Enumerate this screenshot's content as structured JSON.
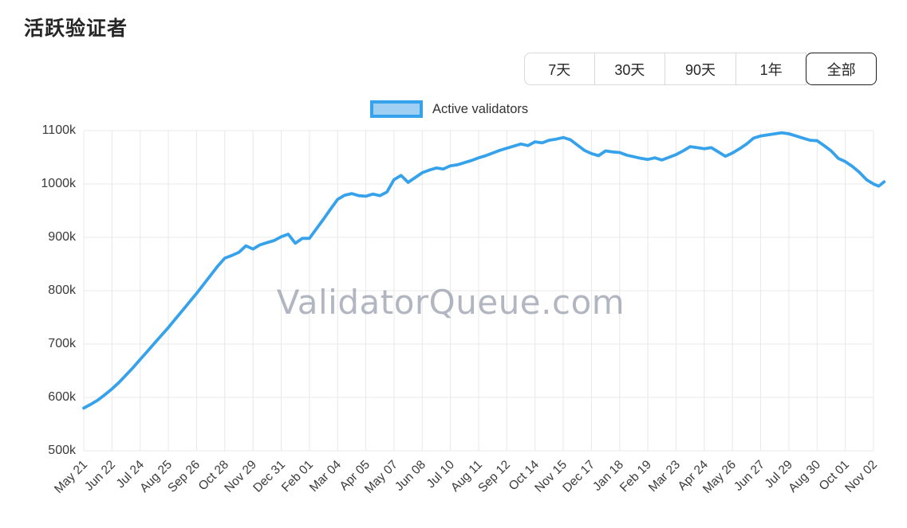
{
  "page": {
    "title": "活跃验证者"
  },
  "range_selector": {
    "options": [
      {
        "label": "7天",
        "selected": false
      },
      {
        "label": "30天",
        "selected": false
      },
      {
        "label": "90天",
        "selected": false
      },
      {
        "label": "1年",
        "selected": false
      },
      {
        "label": "全部",
        "selected": true
      }
    ]
  },
  "legend": {
    "label": "Active validators"
  },
  "watermark": "ValidatorQueue.com",
  "colors": {
    "line": "#36a2eb",
    "legend_fill": "#9fd0f4",
    "grid": "#e8e8e8",
    "axis_text": "#3a3a3a",
    "watermark": "#848b9c"
  },
  "chart_data": {
    "type": "line",
    "title": "活跃验证者",
    "ylabel": "",
    "xlabel": "",
    "grid": true,
    "legend_position": "top",
    "y_tick_labels": [
      "500k",
      "600k",
      "700k",
      "800k",
      "900k",
      "1000k",
      "1100k"
    ],
    "y_tick_values_k": [
      500,
      600,
      700,
      800,
      900,
      1000,
      1100
    ],
    "ylim_k": [
      500,
      1100
    ],
    "x_tick_labels": [
      "May 21",
      "Jun 22",
      "Jul 24",
      "Aug 25",
      "Sep 26",
      "Oct 28",
      "Nov 29",
      "Dec 31",
      "Feb 01",
      "Mar 04",
      "Apr 05",
      "May 07",
      "Jun 08",
      "Jul 10",
      "Aug 11",
      "Sep 12",
      "Oct 14",
      "Nov 15",
      "Dec 17",
      "Jan 18",
      "Feb 19",
      "Mar 23",
      "Apr 24",
      "May 26",
      "Jun 27",
      "Jul 29",
      "Aug 30",
      "Oct 01",
      "Nov 02"
    ],
    "x_tick_days": [
      0,
      32,
      64,
      96,
      128,
      160,
      192,
      224,
      256,
      288,
      320,
      352,
      384,
      416,
      448,
      480,
      512,
      544,
      576,
      608,
      640,
      672,
      704,
      736,
      768,
      800,
      832,
      864,
      896
    ],
    "x_range_days": [
      0,
      914
    ],
    "series": [
      {
        "name": "Active validators",
        "color": "#36a2eb",
        "points_day_value_k": [
          [
            0,
            580
          ],
          [
            8,
            587
          ],
          [
            16,
            595
          ],
          [
            24,
            605
          ],
          [
            32,
            616
          ],
          [
            40,
            628
          ],
          [
            48,
            642
          ],
          [
            56,
            656
          ],
          [
            64,
            671
          ],
          [
            72,
            686
          ],
          [
            80,
            701
          ],
          [
            88,
            716
          ],
          [
            96,
            731
          ],
          [
            104,
            747
          ],
          [
            112,
            763
          ],
          [
            120,
            779
          ],
          [
            128,
            795
          ],
          [
            136,
            812
          ],
          [
            144,
            829
          ],
          [
            152,
            846
          ],
          [
            160,
            861
          ],
          [
            168,
            866
          ],
          [
            176,
            872
          ],
          [
            184,
            884
          ],
          [
            192,
            878
          ],
          [
            200,
            886
          ],
          [
            208,
            890
          ],
          [
            216,
            894
          ],
          [
            224,
            901
          ],
          [
            232,
            906
          ],
          [
            240,
            889
          ],
          [
            248,
            898
          ],
          [
            256,
            898
          ],
          [
            264,
            916
          ],
          [
            272,
            934
          ],
          [
            280,
            953
          ],
          [
            288,
            971
          ],
          [
            296,
            979
          ],
          [
            304,
            982
          ],
          [
            312,
            978
          ],
          [
            320,
            977
          ],
          [
            328,
            981
          ],
          [
            336,
            978
          ],
          [
            344,
            985
          ],
          [
            352,
            1008
          ],
          [
            360,
            1016
          ],
          [
            368,
            1003
          ],
          [
            376,
            1012
          ],
          [
            384,
            1021
          ],
          [
            392,
            1026
          ],
          [
            400,
            1030
          ],
          [
            408,
            1028
          ],
          [
            416,
            1034
          ],
          [
            424,
            1036
          ],
          [
            432,
            1040
          ],
          [
            440,
            1044
          ],
          [
            448,
            1049
          ],
          [
            456,
            1053
          ],
          [
            464,
            1058
          ],
          [
            472,
            1063
          ],
          [
            480,
            1067
          ],
          [
            488,
            1071
          ],
          [
            496,
            1075
          ],
          [
            504,
            1072
          ],
          [
            512,
            1079
          ],
          [
            520,
            1077
          ],
          [
            528,
            1082
          ],
          [
            536,
            1084
          ],
          [
            544,
            1087
          ],
          [
            552,
            1083
          ],
          [
            560,
            1073
          ],
          [
            568,
            1063
          ],
          [
            576,
            1057
          ],
          [
            584,
            1053
          ],
          [
            592,
            1062
          ],
          [
            600,
            1060
          ],
          [
            608,
            1059
          ],
          [
            616,
            1054
          ],
          [
            624,
            1051
          ],
          [
            632,
            1048
          ],
          [
            640,
            1046
          ],
          [
            648,
            1049
          ],
          [
            656,
            1045
          ],
          [
            664,
            1050
          ],
          [
            672,
            1055
          ],
          [
            680,
            1062
          ],
          [
            688,
            1070
          ],
          [
            696,
            1068
          ],
          [
            704,
            1066
          ],
          [
            712,
            1068
          ],
          [
            720,
            1060
          ],
          [
            728,
            1052
          ],
          [
            736,
            1058
          ],
          [
            744,
            1066
          ],
          [
            752,
            1075
          ],
          [
            760,
            1086
          ],
          [
            768,
            1090
          ],
          [
            776,
            1092
          ],
          [
            784,
            1094
          ],
          [
            792,
            1096
          ],
          [
            800,
            1094
          ],
          [
            808,
            1090
          ],
          [
            816,
            1086
          ],
          [
            824,
            1082
          ],
          [
            832,
            1081
          ],
          [
            840,
            1072
          ],
          [
            848,
            1062
          ],
          [
            856,
            1048
          ],
          [
            864,
            1042
          ],
          [
            872,
            1033
          ],
          [
            880,
            1022
          ],
          [
            888,
            1008
          ],
          [
            896,
            1000
          ],
          [
            902,
            996
          ],
          [
            908,
            1004
          ]
        ]
      }
    ]
  }
}
